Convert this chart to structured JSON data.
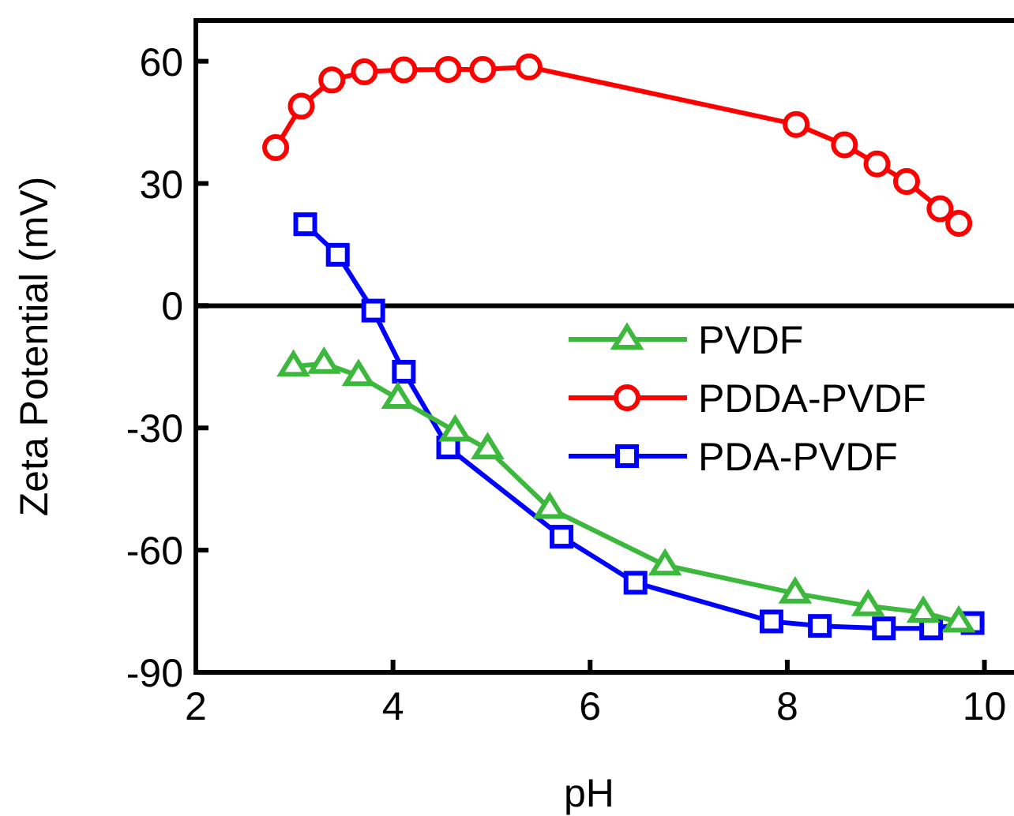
{
  "chart_data": {
    "type": "line",
    "xlabel": "pH",
    "ylabel": "Zeta Potential (mV)",
    "xlim": [
      2,
      10.3
    ],
    "xticks": [
      2,
      4,
      6,
      8,
      10
    ],
    "ylim": [
      -90,
      70
    ],
    "yticks": [
      -90,
      -60,
      -30,
      0,
      30,
      60
    ],
    "grid": false,
    "legend": "right",
    "ref_lines": [
      {
        "axis": "y",
        "value": 0,
        "color": "#000000"
      }
    ],
    "series": [
      {
        "name": "PVDF",
        "color": "#3cb83c",
        "marker": "triangle",
        "x": [
          2.99,
          3.3,
          3.65,
          4.05,
          4.63,
          4.96,
          5.59,
          6.76,
          8.08,
          8.82,
          9.38,
          9.74
        ],
        "values": [
          -14.9,
          -14.2,
          -17.2,
          -22.8,
          -30.8,
          -35.2,
          -49.8,
          -63.7,
          -70.6,
          -73.7,
          -75.3,
          -77.7
        ]
      },
      {
        "name": "PDDA-PVDF",
        "color": "#ff0000",
        "marker": "circle",
        "x": [
          2.81,
          3.07,
          3.38,
          3.71,
          4.11,
          4.56,
          4.91,
          5.38,
          8.09,
          8.58,
          8.91,
          9.21,
          9.55,
          9.74
        ],
        "values": [
          38.8,
          49,
          55.4,
          57.4,
          57.9,
          58,
          58,
          58.6,
          44.5,
          39.5,
          34.8,
          30.5,
          23.8,
          20.2
        ]
      },
      {
        "name": "PDA-PVDF",
        "color": "#0000ff",
        "marker": "square",
        "x": [
          3.11,
          3.44,
          3.8,
          4.11,
          4.56,
          5.71,
          6.46,
          7.84,
          8.33,
          8.98,
          9.46,
          9.88
        ],
        "values": [
          20,
          12.5,
          -1.2,
          -16.2,
          -34.8,
          -56.7,
          -68,
          -77.5,
          -78.6,
          -79.2,
          -79.2,
          -77.9
        ]
      }
    ]
  }
}
